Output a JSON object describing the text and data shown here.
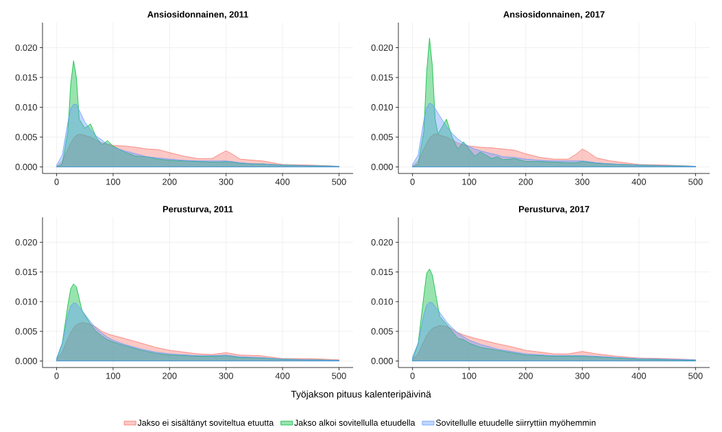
{
  "chart_data": [
    {
      "type": "area",
      "title": "Ansiosidonnainen, 2011",
      "xlim": [
        -25,
        525
      ],
      "ylim": [
        -0.0011,
        0.0242
      ],
      "grid": true,
      "xticks": [
        0,
        100,
        200,
        300,
        400,
        500
      ],
      "yticks": [
        {
          "value": 0,
          "label": "0.000"
        },
        {
          "value": 0.005,
          "label": "0.005"
        },
        {
          "value": 0.01,
          "label": "0.010"
        },
        {
          "value": 0.015,
          "label": "0.015"
        },
        {
          "value": 0.02,
          "label": "0.020"
        }
      ],
      "x": [
        0,
        10,
        20,
        25,
        30,
        35,
        40,
        50,
        60,
        70,
        80,
        90,
        100,
        120,
        140,
        160,
        180,
        200,
        225,
        250,
        275,
        290,
        300,
        310,
        325,
        350,
        365,
        400,
        450,
        500
      ],
      "series": [
        {
          "color": "#f8766d",
          "values": [
            0.0001,
            0.001,
            0.003,
            0.004,
            0.0048,
            0.0053,
            0.0055,
            0.0053,
            0.005,
            0.0045,
            0.004,
            0.0038,
            0.0036,
            0.0035,
            0.0033,
            0.003,
            0.0029,
            0.0024,
            0.0018,
            0.0014,
            0.0014,
            0.0022,
            0.0027,
            0.0022,
            0.0013,
            0.0011,
            0.001,
            0.0004,
            0.0003,
            0.0001
          ]
        },
        {
          "color": "#00ba38",
          "values": [
            0,
            0.0005,
            0.006,
            0.014,
            0.0178,
            0.015,
            0.008,
            0.0065,
            0.0072,
            0.005,
            0.0037,
            0.0044,
            0.0035,
            0.0025,
            0.0018,
            0.0017,
            0.0013,
            0.0011,
            0.001,
            0.0009,
            0.0008,
            0.0008,
            0.0009,
            0.0008,
            0.0006,
            0.0005,
            0.0005,
            0.0003,
            0.0002,
            0.0001
          ]
        },
        {
          "color": "#619cff",
          "values": [
            0.0003,
            0.002,
            0.0075,
            0.0098,
            0.0105,
            0.0105,
            0.0095,
            0.0075,
            0.0062,
            0.0052,
            0.0045,
            0.0038,
            0.0033,
            0.0027,
            0.0022,
            0.0017,
            0.0015,
            0.0013,
            0.0011,
            0.001,
            0.001,
            0.001,
            0.001,
            0.0009,
            0.0007,
            0.0005,
            0.0005,
            0.0003,
            0.0002,
            0.0001
          ]
        }
      ]
    },
    {
      "type": "area",
      "title": "Ansiosidonnainen, 2017",
      "xlim": [
        -25,
        525
      ],
      "ylim": [
        -0.0011,
        0.0242
      ],
      "grid": true,
      "xticks": [
        0,
        100,
        200,
        300,
        400,
        500
      ],
      "yticks": [
        {
          "value": 0,
          "label": "0.000"
        },
        {
          "value": 0.005,
          "label": "0.005"
        },
        {
          "value": 0.01,
          "label": "0.010"
        },
        {
          "value": 0.015,
          "label": "0.015"
        },
        {
          "value": 0.02,
          "label": "0.020"
        }
      ],
      "x": [
        0,
        10,
        20,
        25,
        30,
        35,
        40,
        45,
        60,
        70,
        80,
        90,
        100,
        110,
        120,
        140,
        150,
        160,
        180,
        200,
        225,
        250,
        275,
        290,
        300,
        310,
        325,
        350,
        400,
        450,
        500
      ],
      "series": [
        {
          "color": "#f8766d",
          "values": [
            0.0001,
            0.001,
            0.003,
            0.004,
            0.0048,
            0.0053,
            0.0055,
            0.0054,
            0.005,
            0.0045,
            0.004,
            0.0037,
            0.0035,
            0.0034,
            0.0033,
            0.0032,
            0.0031,
            0.003,
            0.0028,
            0.0022,
            0.0016,
            0.0013,
            0.0013,
            0.0022,
            0.003,
            0.0025,
            0.0015,
            0.001,
            0.0004,
            0.0003,
            0.0001
          ]
        },
        {
          "color": "#00ba38",
          "values": [
            0,
            0.0005,
            0.006,
            0.016,
            0.0216,
            0.017,
            0.008,
            0.0055,
            0.008,
            0.005,
            0.003,
            0.0042,
            0.003,
            0.0018,
            0.0025,
            0.0014,
            0.0017,
            0.0012,
            0.0014,
            0.0009,
            0.0009,
            0.0008,
            0.0007,
            0.0007,
            0.0009,
            0.0008,
            0.0006,
            0.0005,
            0.0003,
            0.0002,
            0.0001
          ]
        },
        {
          "color": "#619cff",
          "values": [
            0.0004,
            0.002,
            0.0078,
            0.0099,
            0.0107,
            0.0105,
            0.0098,
            0.009,
            0.0068,
            0.0056,
            0.0047,
            0.004,
            0.0034,
            0.003,
            0.0027,
            0.0022,
            0.002,
            0.0017,
            0.0016,
            0.0013,
            0.0011,
            0.001,
            0.001,
            0.001,
            0.001,
            0.0009,
            0.0007,
            0.0005,
            0.0003,
            0.0002,
            0.0001
          ]
        }
      ]
    },
    {
      "type": "area",
      "title": "Perusturva, 2011",
      "xlim": [
        -25,
        525
      ],
      "ylim": [
        -0.0011,
        0.0242
      ],
      "grid": true,
      "xticks": [
        0,
        100,
        200,
        300,
        400,
        500
      ],
      "yticks": [
        {
          "value": 0,
          "label": "0.000"
        },
        {
          "value": 0.005,
          "label": "0.005"
        },
        {
          "value": 0.01,
          "label": "0.010"
        },
        {
          "value": 0.015,
          "label": "0.015"
        },
        {
          "value": 0.02,
          "label": "0.020"
        }
      ],
      "x": [
        0,
        10,
        20,
        25,
        30,
        35,
        45,
        60,
        70,
        80,
        90,
        100,
        120,
        150,
        175,
        200,
        250,
        275,
        300,
        325,
        360,
        400,
        450,
        500
      ],
      "series": [
        {
          "color": "#f8766d",
          "values": [
            0.0002,
            0.0015,
            0.0038,
            0.0048,
            0.0056,
            0.0061,
            0.0065,
            0.0062,
            0.0057,
            0.005,
            0.0046,
            0.0043,
            0.0038,
            0.003,
            0.0023,
            0.0018,
            0.0012,
            0.0011,
            0.0014,
            0.001,
            0.0009,
            0.0004,
            0.0004,
            0.0002
          ]
        },
        {
          "color": "#00ba38",
          "values": [
            0.0003,
            0.003,
            0.0095,
            0.0122,
            0.013,
            0.0125,
            0.0085,
            0.0062,
            0.005,
            0.0042,
            0.0036,
            0.0032,
            0.0026,
            0.0018,
            0.0013,
            0.001,
            0.0008,
            0.0008,
            0.0009,
            0.0006,
            0.0005,
            0.0003,
            0.0002,
            0.0001
          ]
        },
        {
          "color": "#619cff",
          "values": [
            0.0005,
            0.003,
            0.0078,
            0.0093,
            0.0098,
            0.0097,
            0.0085,
            0.0066,
            0.0055,
            0.0047,
            0.004,
            0.0035,
            0.0028,
            0.002,
            0.0015,
            0.0012,
            0.0009,
            0.0009,
            0.001,
            0.0007,
            0.0006,
            0.0003,
            0.0002,
            0.0001
          ]
        }
      ]
    },
    {
      "type": "area",
      "title": "Perusturva, 2017",
      "xlabel": "Työjakson pituus kalenteripäivinä",
      "legend": "bottom",
      "xlim": [
        -25,
        525
      ],
      "ylim": [
        -0.0011,
        0.0242
      ],
      "grid": true,
      "xticks": [
        0,
        100,
        200,
        300,
        400,
        500
      ],
      "yticks": [
        {
          "value": 0,
          "label": "0.000"
        },
        {
          "value": 0.005,
          "label": "0.005"
        },
        {
          "value": 0.01,
          "label": "0.010"
        },
        {
          "value": 0.015,
          "label": "0.015"
        },
        {
          "value": 0.02,
          "label": "0.020"
        }
      ],
      "x": [
        0,
        10,
        20,
        25,
        30,
        35,
        48,
        60,
        70,
        80,
        90,
        100,
        120,
        150,
        175,
        200,
        250,
        275,
        300,
        325,
        360,
        400,
        450,
        500
      ],
      "series": [
        {
          "name": "Jakso ei sisältänyt soviteltua etuutta",
          "color": "#f8766d",
          "values": [
            0.0002,
            0.0012,
            0.0033,
            0.0043,
            0.005,
            0.0055,
            0.006,
            0.0058,
            0.0054,
            0.0048,
            0.0044,
            0.0041,
            0.0036,
            0.0029,
            0.0024,
            0.0018,
            0.0012,
            0.0012,
            0.0016,
            0.0012,
            0.0008,
            0.0005,
            0.0004,
            0.0002
          ]
        },
        {
          "name": "Jakso alkoi sovitellulla etuudella",
          "color": "#00ba38",
          "values": [
            0.0002,
            0.003,
            0.011,
            0.0148,
            0.0155,
            0.0145,
            0.0075,
            0.0062,
            0.005,
            0.0038,
            0.0036,
            0.003,
            0.0023,
            0.0018,
            0.0014,
            0.001,
            0.0008,
            0.0008,
            0.0008,
            0.0007,
            0.0005,
            0.0003,
            0.0002,
            0.0001
          ]
        },
        {
          "name": "Sovitellulle etuudelle siirryttiin myöhemmin",
          "color": "#619cff",
          "values": [
            0.0007,
            0.003,
            0.0078,
            0.0094,
            0.0099,
            0.0098,
            0.0082,
            0.0066,
            0.0056,
            0.0047,
            0.0041,
            0.0035,
            0.0028,
            0.002,
            0.0016,
            0.0012,
            0.0009,
            0.0009,
            0.0009,
            0.0008,
            0.0006,
            0.0004,
            0.0003,
            0.0002
          ]
        }
      ]
    }
  ]
}
